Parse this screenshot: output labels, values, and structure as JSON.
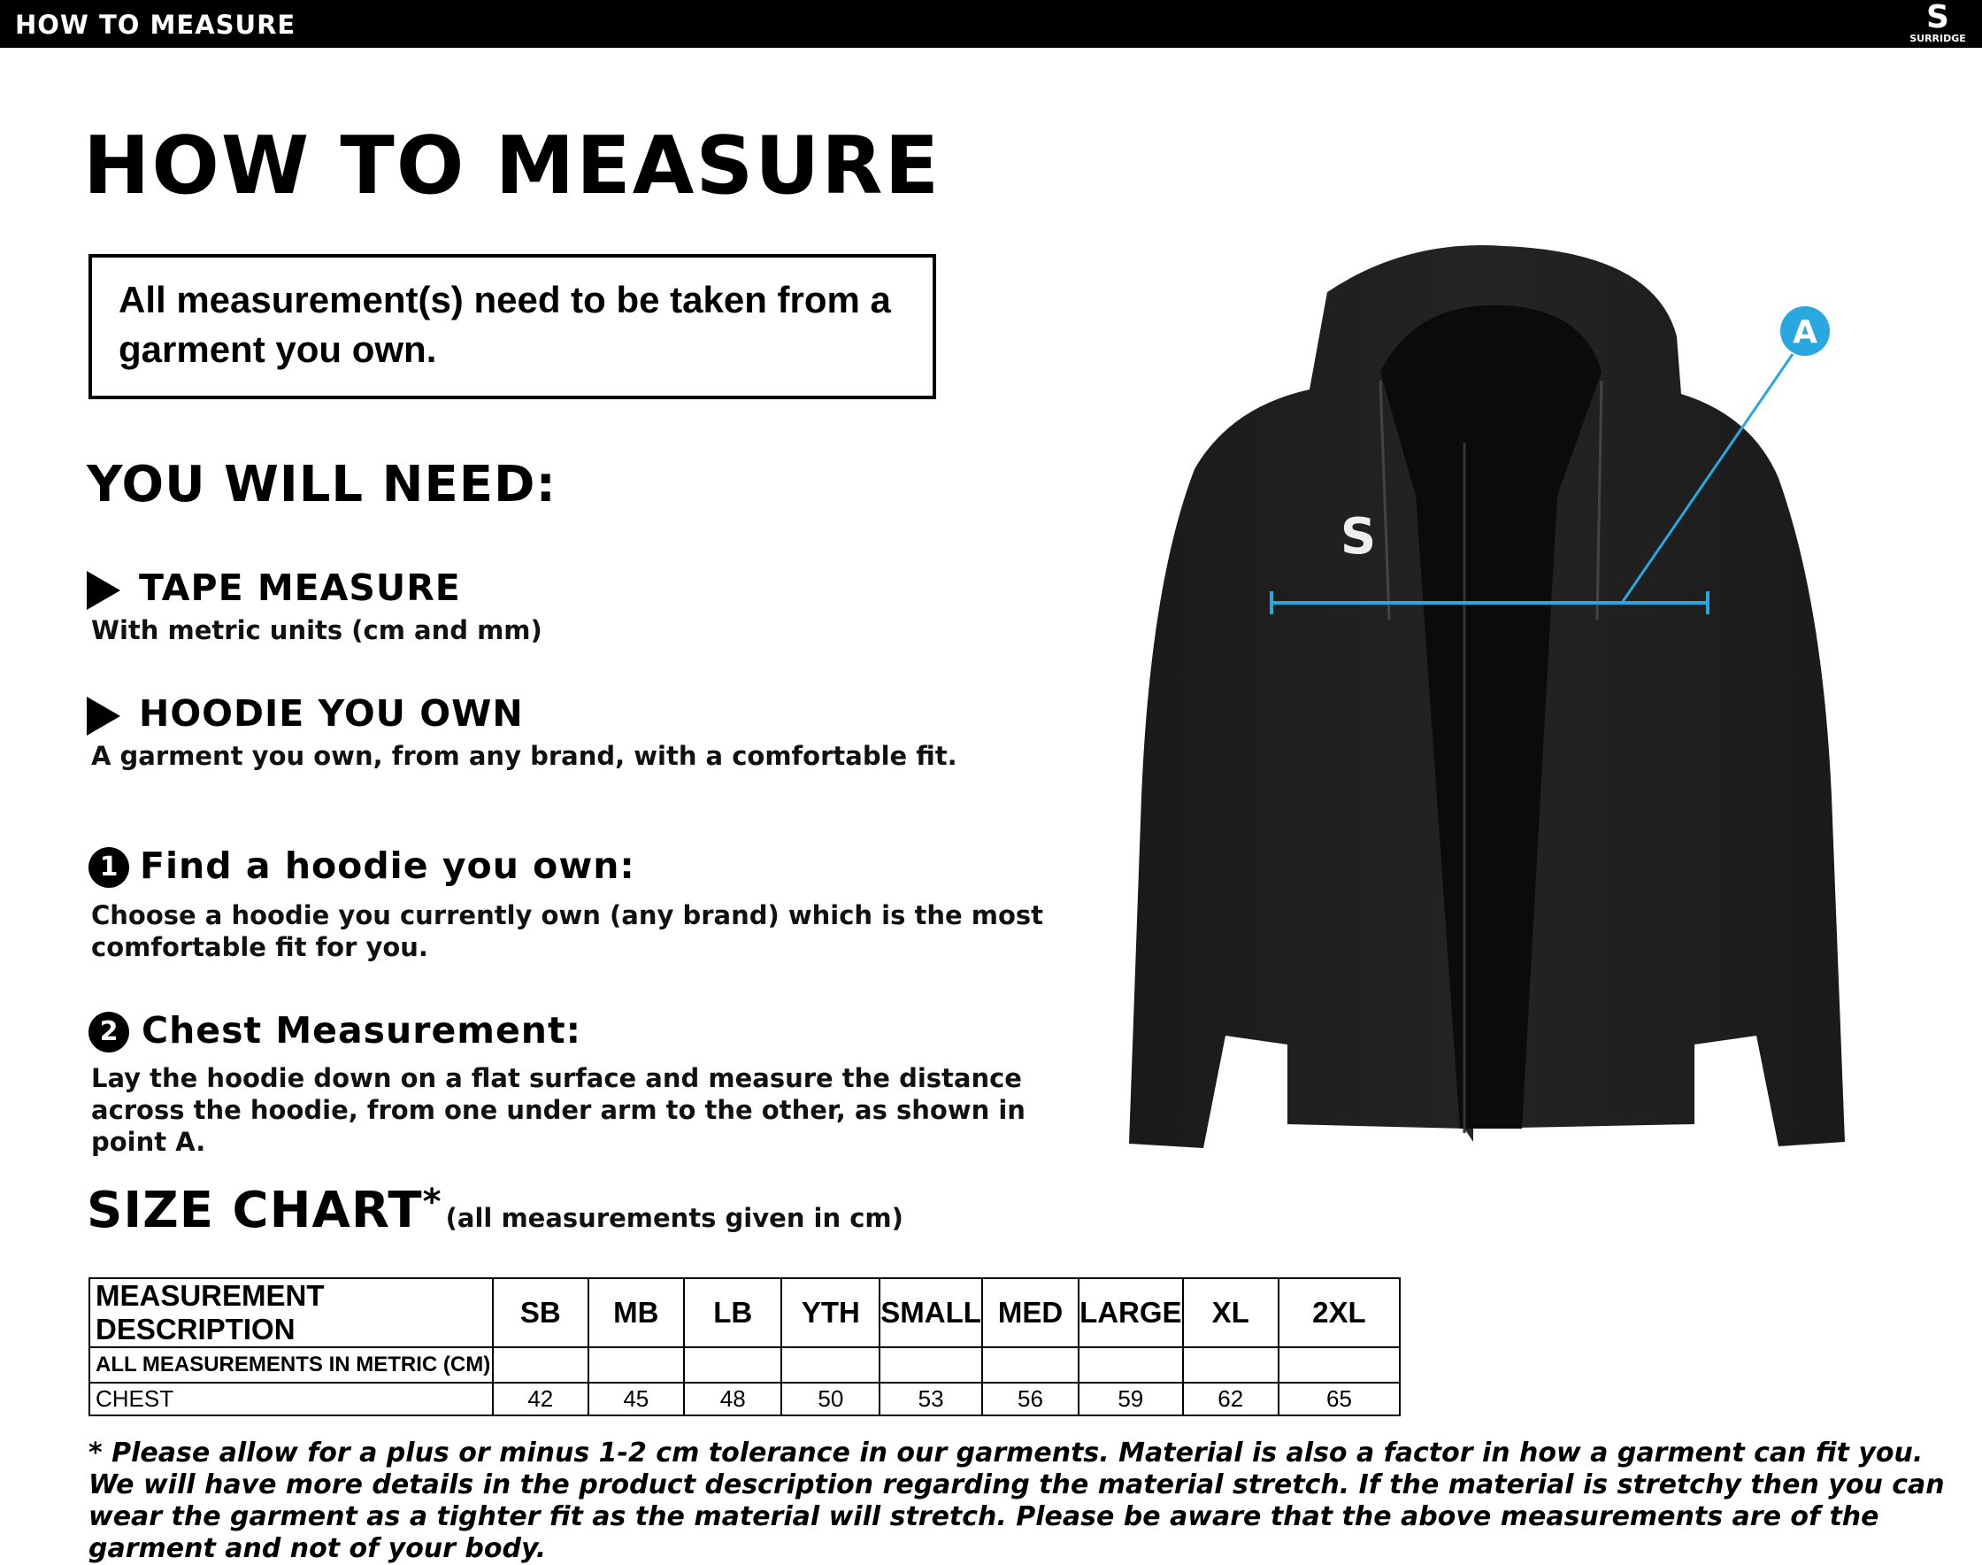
{
  "topbar": {
    "title": "HOW TO MEASURE",
    "brand": "SURRIDGE"
  },
  "title": "HOW TO MEASURE",
  "notice": "All measurement(s) need to be taken from a garment you own.",
  "you_will_need": {
    "heading": "YOU WILL NEED:",
    "items": [
      {
        "title": "TAPE MEASURE",
        "text": "With metric units (cm and mm)"
      },
      {
        "title": "HOODIE YOU OWN",
        "text": "A garment you own, from any brand, with a comfortable fit."
      }
    ]
  },
  "steps": [
    {
      "number": "1",
      "title": "Find a hoodie you own:",
      "text": "Choose a hoodie you currently own (any brand) which is the most comfortable fit for you."
    },
    {
      "number": "2",
      "title": "Chest Measurement:",
      "text": "Lay the hoodie down on a flat surface and measure the distance across the hoodie, from one under arm to the other, as shown in point A."
    }
  ],
  "size_chart": {
    "heading": "SIZE CHART",
    "asterisk": "*",
    "note": "(all measurements given in cm)",
    "columns": [
      "MEASUREMENT DESCRIPTION",
      "SB",
      "MB",
      "LB",
      "YTH",
      "SMALL",
      "MED",
      "LARGE",
      "XL",
      "2XL"
    ],
    "subheader": "ALL MEASUREMENTS IN METRIC (CM)",
    "rows": [
      {
        "label": "CHEST",
        "values": [
          "42",
          "45",
          "48",
          "50",
          "53",
          "56",
          "59",
          "62",
          "65"
        ]
      }
    ]
  },
  "diagram": {
    "point_label": "A",
    "accent": "#29a8e0",
    "garment": "hoodie"
  },
  "footnote": "* Please allow for a plus or minus 1-2 cm tolerance in our garments. Material is also a factor in how a garment can fit you. We will have more details in the product description regarding the material stretch.  If the material is stretchy then you can wear the garment as a tighter fit as the material will stretch.  Please be aware that the above measurements are of the garment and not of your body."
}
